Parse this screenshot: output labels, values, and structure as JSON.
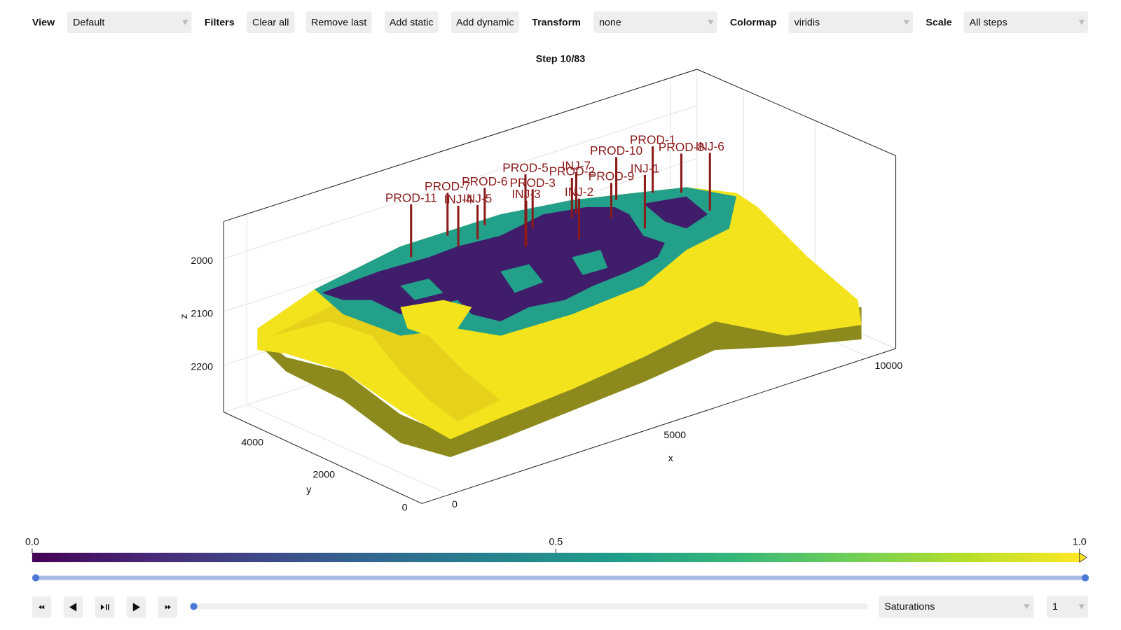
{
  "toolbar": {
    "view_label": "View",
    "view_value": "Default",
    "filters_label": "Filters",
    "buttons": [
      "Clear all",
      "Remove last",
      "Add static",
      "Add dynamic"
    ],
    "transform_label": "Transform",
    "transform_value": "none",
    "colormap_label": "Colormap",
    "colormap_value": "viridis",
    "scale_label": "Scale",
    "scale_value": "All steps"
  },
  "plot": {
    "title": "Step 10/83",
    "z_label": "z",
    "x_label": "x",
    "y_label": "y",
    "z_ticks": [
      2000,
      2100,
      2200
    ],
    "x_ticks": [
      0,
      5000,
      10000
    ],
    "y_ticks": [
      0,
      2000,
      4000
    ],
    "wells": [
      "PROD-11",
      "PROD-7",
      "INJ-4",
      "INJ-5",
      "PROD-6",
      "PROD-5",
      "PROD-3",
      "INJ-3",
      "INJ-7",
      "PROD-2",
      "INJ-2",
      "PROD-9",
      "PROD-10",
      "INJ-1",
      "PROD-1",
      "PROD-8",
      "INJ-6"
    ]
  },
  "colorbar": {
    "ticks": [
      {
        "value": 0,
        "label": "0.0"
      },
      {
        "value": 0.5,
        "label": "0.5"
      },
      {
        "value": 1,
        "label": "1.0"
      }
    ]
  },
  "controls": {
    "variable": "Saturations",
    "layer": "1"
  }
}
